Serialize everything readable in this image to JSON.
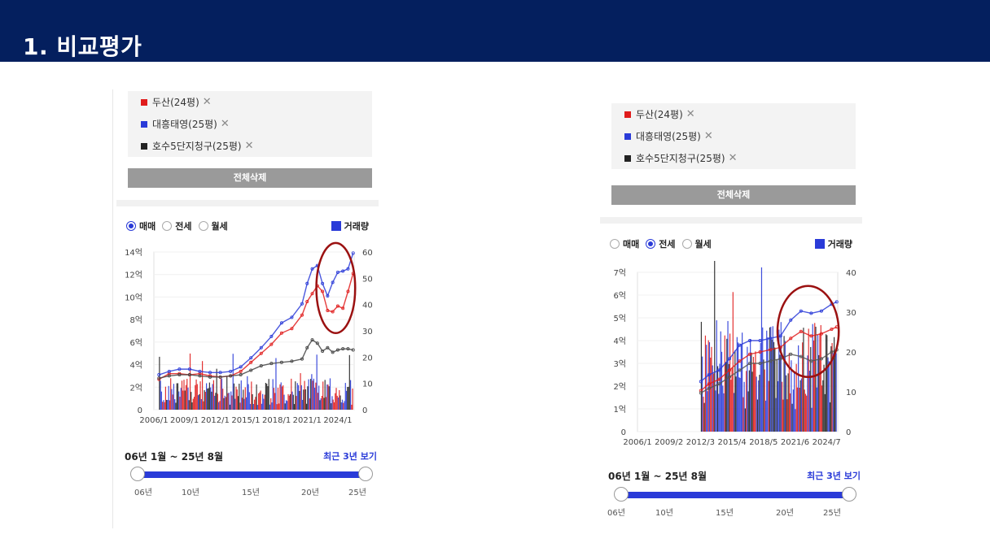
{
  "header": {
    "title": "1. 비교평가"
  },
  "colors": {
    "header_bg": "#041f5e",
    "series_red": "#e01c1c",
    "series_blue": "#2a3bd8",
    "series_black": "#333333",
    "accent": "#2a3bd8",
    "highlight_circle": "#9b1111"
  },
  "panels": [
    {
      "legend": [
        {
          "label": "두산(24평)",
          "color": "#e01c1c",
          "remove": "✕"
        },
        {
          "label": "대흥태영(25평)",
          "color": "#2a3bd8",
          "remove": "✕"
        },
        {
          "label": "호수5단지청구(25평)",
          "color": "#222222",
          "remove": "✕"
        }
      ],
      "delete_all": "전체삭제",
      "radios": [
        {
          "label": "매매",
          "selected": true
        },
        {
          "label": "전세",
          "selected": false
        },
        {
          "label": "월세",
          "selected": false
        }
      ],
      "volume_toggle": "거래량",
      "period": "06년 1월 ~ 25년 8월",
      "recent": "최근 3년 보기",
      "slider_ticks": [
        "06년",
        "10년",
        "15년",
        "20년",
        "25년"
      ],
      "slider_range": [
        2006,
        2025
      ]
    },
    {
      "legend": [
        {
          "label": "두산(24평)",
          "color": "#e01c1c",
          "remove": "✕"
        },
        {
          "label": "대흥태영(25평)",
          "color": "#2a3bd8",
          "remove": "✕"
        },
        {
          "label": "호수5단지청구(25평)",
          "color": "#222222",
          "remove": "✕"
        }
      ],
      "delete_all": "전체삭제",
      "radios": [
        {
          "label": "매매",
          "selected": false
        },
        {
          "label": "전세",
          "selected": true
        },
        {
          "label": "월세",
          "selected": false
        }
      ],
      "volume_toggle": "거래량",
      "period": "06년 1월 ~ 25년 8월",
      "recent": "최근 3년 보기",
      "slider_ticks": [
        "06년",
        "10년",
        "15년",
        "20년",
        "25년"
      ],
      "slider_range": [
        2006,
        2025
      ]
    }
  ],
  "chart_data": [
    {
      "type": "line",
      "title": "",
      "y_ticks": [
        "0",
        "2억",
        "4억",
        "6억",
        "8억",
        "10억",
        "12억",
        "14억"
      ],
      "ylim": [
        0,
        14
      ],
      "y2_ticks": [
        "0",
        "10",
        "20",
        "30",
        "40",
        "50",
        "60"
      ],
      "y2lim": [
        0,
        60
      ],
      "x_ticks": [
        "2006/1",
        "2009/1",
        "2012/1",
        "2015/1",
        "2018/1",
        "2021/1",
        "2024/1"
      ],
      "xlim": [
        2006.0,
        2025.6
      ],
      "series": [
        {
          "name": "두산(24평)",
          "color": "#e01c1c",
          "x": [
            2006.5,
            2007.5,
            2008.5,
            2009.5,
            2010.5,
            2011.5,
            2012.5,
            2013.5,
            2014.5,
            2015.5,
            2016.5,
            2017.5,
            2018.5,
            2019.5,
            2020.5,
            2021.0,
            2021.5,
            2022.0,
            2022.5,
            2023.0,
            2023.5,
            2024.0,
            2024.5,
            2025.0,
            2025.5
          ],
          "y": [
            2.7,
            3.2,
            3.2,
            3.1,
            3.2,
            3.0,
            2.9,
            3.0,
            3.4,
            4.2,
            5.0,
            5.8,
            6.8,
            7.2,
            8.4,
            9.6,
            10.3,
            11.0,
            10.5,
            8.8,
            8.7,
            9.2,
            9.0,
            10.5,
            12.1
          ]
        },
        {
          "name": "대흥태영(25평)",
          "color": "#2a3bd8",
          "x": [
            2006.5,
            2007.5,
            2008.5,
            2009.5,
            2010.5,
            2011.5,
            2012.5,
            2013.5,
            2014.5,
            2015.5,
            2016.5,
            2017.5,
            2018.5,
            2019.5,
            2020.5,
            2021.0,
            2021.5,
            2022.0,
            2022.5,
            2023.0,
            2023.5,
            2024.0,
            2024.5,
            2025.0,
            2025.5
          ],
          "y": [
            3.1,
            3.4,
            3.6,
            3.6,
            3.4,
            3.3,
            3.3,
            3.4,
            3.8,
            4.6,
            5.5,
            6.5,
            7.7,
            8.2,
            9.4,
            11.2,
            12.5,
            12.8,
            11.2,
            10.1,
            11.3,
            12.2,
            12.3,
            12.5,
            13.9
          ]
        },
        {
          "name": "호수5단지청구(25평)",
          "color": "#444444",
          "x": [
            2006.5,
            2007.5,
            2008.5,
            2009.5,
            2010.5,
            2011.5,
            2012.5,
            2013.5,
            2014.5,
            2015.5,
            2016.5,
            2017.5,
            2018.5,
            2019.5,
            2020.5,
            2021.0,
            2021.5,
            2022.0,
            2022.5,
            2023.0,
            2023.5,
            2024.0,
            2024.5,
            2025.0,
            2025.5
          ],
          "y": [
            2.8,
            3.0,
            3.1,
            3.1,
            3.0,
            2.9,
            2.9,
            3.0,
            3.1,
            3.5,
            3.9,
            4.1,
            4.2,
            4.3,
            4.5,
            5.5,
            6.2,
            5.9,
            5.2,
            5.5,
            5.1,
            5.3,
            5.4,
            5.4,
            5.3
          ]
        }
      ],
      "volume_base_max": 12,
      "highlight_circle": {
        "cx": 2023.8,
        "cy": 10.8,
        "rx": 1.9,
        "ry": 4.0
      }
    },
    {
      "type": "line",
      "title": "",
      "y_ticks": [
        "0",
        "1억",
        "2억",
        "3억",
        "4억",
        "5억",
        "6억",
        "7억"
      ],
      "ylim": [
        0,
        7
      ],
      "y2_ticks": [
        "0",
        "10",
        "20",
        "30",
        "40"
      ],
      "y2lim": [
        0,
        40
      ],
      "x_ticks": [
        "2006/1",
        "2009/2",
        "2012/3",
        "2015/4",
        "2018/5",
        "2021/6",
        "2024/7"
      ],
      "xlim": [
        2006.0,
        2025.6
      ],
      "series": [
        {
          "name": "두산(24평)",
          "color": "#e01c1c",
          "x": [
            2012.2,
            2013.0,
            2014.0,
            2015.0,
            2016.0,
            2017.0,
            2018.0,
            2019.0,
            2020.0,
            2021.0,
            2022.0,
            2023.0,
            2024.0,
            2025.0,
            2025.5
          ],
          "y": [
            1.8,
            2.1,
            2.3,
            2.7,
            3.1,
            3.4,
            3.5,
            3.6,
            3.7,
            4.1,
            4.4,
            4.2,
            4.3,
            4.5,
            4.6
          ]
        },
        {
          "name": "대흥태영(25평)",
          "color": "#2a3bd8",
          "x": [
            2012.2,
            2013.0,
            2014.0,
            2015.0,
            2016.0,
            2017.0,
            2018.0,
            2019.0,
            2020.0,
            2021.0,
            2022.0,
            2023.0,
            2024.0,
            2025.0,
            2025.5
          ],
          "y": [
            2.2,
            2.5,
            2.7,
            3.2,
            3.8,
            4.0,
            4.0,
            4.1,
            4.2,
            4.9,
            5.3,
            5.2,
            5.3,
            5.6,
            5.7
          ]
        },
        {
          "name": "호수5단지청구(25평)",
          "color": "#555555",
          "x": [
            2012.2,
            2013.0,
            2014.0,
            2015.0,
            2016.0,
            2017.0,
            2018.0,
            2019.0,
            2020.0,
            2021.0,
            2022.0,
            2023.0,
            2024.0,
            2025.0,
            2025.5
          ],
          "y": [
            1.7,
            1.9,
            2.1,
            2.4,
            2.7,
            3.0,
            3.0,
            3.1,
            3.2,
            3.4,
            3.3,
            3.1,
            3.2,
            3.5,
            3.6
          ]
        }
      ],
      "volume_base_max": 28,
      "highlight_circle": {
        "cx": 2022.7,
        "cy": 4.4,
        "rx": 3.0,
        "ry": 2.0
      }
    }
  ]
}
